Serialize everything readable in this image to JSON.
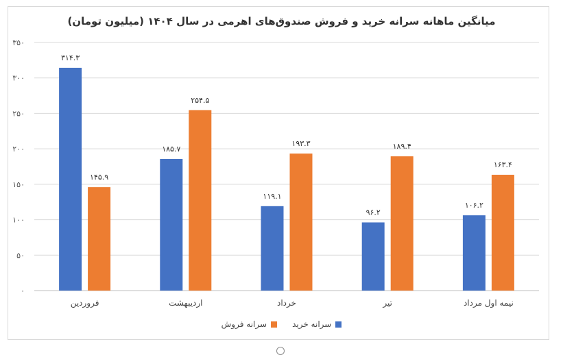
{
  "chart_data": {
    "type": "bar",
    "title": "میانگین ماهانه سرانه خرید و فروش صندوق‌های اهرمی در سال ۱۴۰۴ (میلیون تومان)",
    "categories": [
      "فروردین",
      "اردیبهشت",
      "خرداد",
      "تیر",
      "نیمه اول مرداد"
    ],
    "series": [
      {
        "name": "سرانه خرید",
        "color": "#4472c4",
        "values": [
          314.3,
          185.7,
          119.1,
          96.2,
          106.2
        ],
        "labels": [
          "۳۱۴.۳",
          "۱۸۵.۷",
          "۱۱۹.۱",
          "۹۶.۲",
          "۱۰۶.۲"
        ]
      },
      {
        "name": "سرانه فروش",
        "color": "#ed7d31",
        "values": [
          145.9,
          254.5,
          193.3,
          189.4,
          163.4
        ],
        "labels": [
          "۱۴۵.۹",
          "۲۵۴.۵",
          "۱۹۳.۳",
          "۱۸۹.۴",
          "۱۶۳.۴"
        ]
      }
    ],
    "ylim": [
      0,
      350
    ],
    "yticks": [
      0,
      50,
      100,
      150,
      200,
      250,
      300,
      350
    ],
    "ytick_labels": [
      "۰",
      "۵۰",
      "۱۰۰",
      "۱۵۰",
      "۲۰۰",
      "۲۵۰",
      "۳۰۰",
      "۳۵۰"
    ],
    "grid": true,
    "legend": "bottom"
  }
}
